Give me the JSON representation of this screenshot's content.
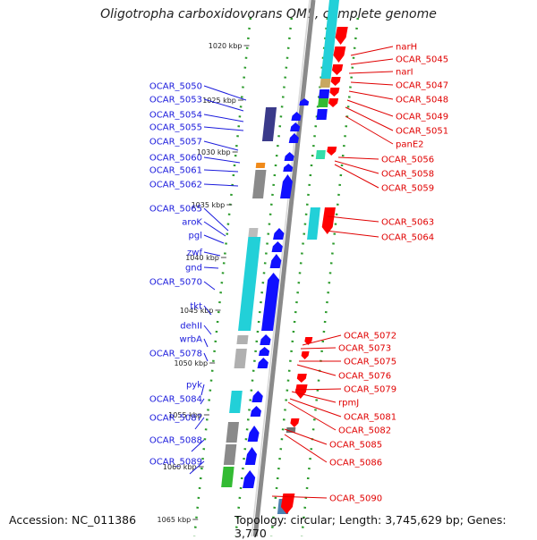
{
  "title": "Oligotropha carboxidovorans OM5, complete genome",
  "footer": {
    "accession": "Accession: NC_011386",
    "summary": "Topology: circular; Length: 3,745,629 bp; Genes: 3,770"
  },
  "colors": {
    "minus_label": "#1a1adc",
    "plus_label": "#e00000",
    "backbone": "#8a8a8a",
    "tick": "#2a9a2a",
    "gene_blue": "#1010ff",
    "gene_red": "#ff0000",
    "cds_cyan": "#22d0d8",
    "cds_navy": "#3a3a8a",
    "cds_gray": "#8a8a8a",
    "cds_green": "#33bb33",
    "cds_orange": "#f08a1a",
    "cds_tan": "#c8a860",
    "cds_steel": "#4a80b0"
  },
  "kbp_ticks": [
    "1020 kbp",
    "1025 kbp",
    "1030 kbp",
    "1035 kbp",
    "1040 kbp",
    "1045 kbp",
    "1050 kbp",
    "1055 kbp",
    "1060 kbp",
    "1065 kbp"
  ],
  "left_labels": [
    "OCAR_5050",
    "OCAR_5053",
    "OCAR_5054",
    "OCAR_5055",
    "OCAR_5057",
    "OCAR_5060",
    "OCAR_5061",
    "OCAR_5062",
    "OCAR_5065",
    "aroK",
    "pgl",
    "zwf",
    "gnd",
    "OCAR_5070",
    "tkt",
    "dehII",
    "wrbA",
    "OCAR_5078",
    "pyk",
    "OCAR_5084",
    "OCAR_5087",
    "OCAR_5088",
    "OCAR_5089"
  ],
  "right_labels": [
    "narH",
    "OCAR_5045",
    "narI",
    "OCAR_5047",
    "OCAR_5048",
    "OCAR_5049",
    "OCAR_5051",
    "panE2",
    "OCAR_5056",
    "OCAR_5058",
    "OCAR_5059",
    "OCAR_5063",
    "OCAR_5064",
    "OCAR_5072",
    "OCAR_5073",
    "OCAR_5075",
    "OCAR_5076",
    "OCAR_5079",
    "rpmJ",
    "OCAR_5081",
    "OCAR_5082",
    "OCAR_5085",
    "OCAR_5086",
    "OCAR_5090"
  ]
}
